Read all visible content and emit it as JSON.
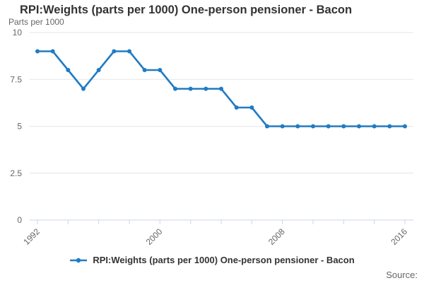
{
  "header": {
    "title": "RPI:Weights (parts per 1000) One-person pensioner - Bacon"
  },
  "axes": {
    "y_axis_title": "Parts per 1000"
  },
  "legend": {
    "label": "RPI:Weights (parts per 1000) One-person pensioner - Bacon",
    "marker": "line-with-dot-icon"
  },
  "footer": {
    "source_label": "Source:"
  },
  "colors": {
    "series": "#217bc4",
    "gridline": "#e6e6e6",
    "axis_line": "#ccd6eb",
    "tick_label": "#666666",
    "title_text": "#333333"
  },
  "chart_data": {
    "type": "line",
    "title": "RPI:Weights (parts per 1000) One-person pensioner - Bacon",
    "xlabel": "",
    "ylabel": "Parts per 1000",
    "x": [
      1992,
      1993,
      1994,
      1995,
      1996,
      1997,
      1998,
      1999,
      2000,
      2001,
      2002,
      2003,
      2004,
      2005,
      2006,
      2007,
      2008,
      2009,
      2010,
      2011,
      2012,
      2013,
      2014,
      2015,
      2016
    ],
    "series": [
      {
        "name": "RPI:Weights (parts per 1000) One-person pensioner - Bacon",
        "values": [
          9,
          9,
          8,
          7,
          8,
          9,
          9,
          8,
          8,
          7,
          7,
          7,
          7,
          6,
          6,
          5,
          5,
          5,
          5,
          5,
          5,
          5,
          5,
          5,
          5
        ]
      }
    ],
    "ylim": [
      0,
      10
    ],
    "yticks": [
      0,
      2.5,
      5,
      7.5,
      10
    ],
    "xticks_labeled": [
      1992,
      2000,
      2008,
      2016
    ],
    "xtick_minor_step": 2,
    "grid": "horizontal",
    "marker": "circle",
    "legend_position": "bottom-center"
  }
}
